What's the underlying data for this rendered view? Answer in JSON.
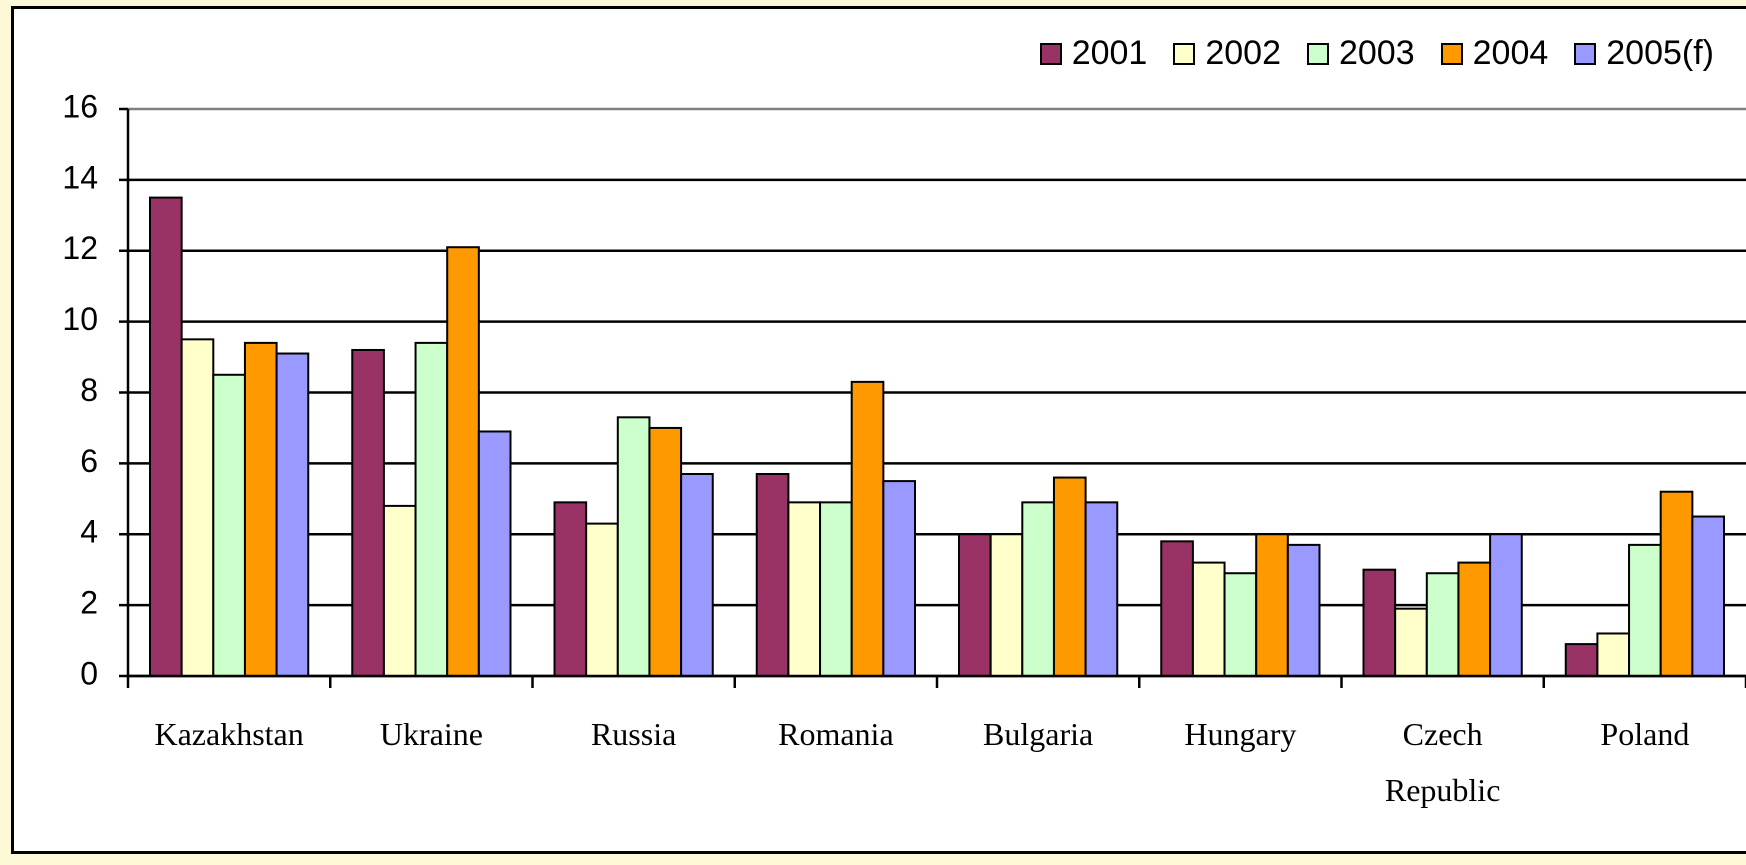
{
  "chart_data": {
    "type": "bar",
    "categories": [
      "Kazakhstan",
      "Ukraine",
      "Russia",
      "Romania",
      "Bulgaria",
      "Hungary",
      "Czech Republic",
      "Poland"
    ],
    "series": [
      {
        "name": "2001",
        "color": "#993366",
        "values": [
          13.5,
          9.2,
          4.9,
          5.7,
          4.0,
          3.8,
          3.0,
          0.9
        ]
      },
      {
        "name": "2002",
        "color": "#ffffcc",
        "values": [
          9.5,
          4.8,
          4.3,
          4.9,
          4.0,
          3.2,
          1.9,
          1.2
        ]
      },
      {
        "name": "2003",
        "color": "#ccffcc",
        "values": [
          8.5,
          9.4,
          7.3,
          4.9,
          4.9,
          2.9,
          2.9,
          3.7
        ]
      },
      {
        "name": "2004",
        "color": "#ff9900",
        "values": [
          9.4,
          12.1,
          7.0,
          8.3,
          5.6,
          4.0,
          3.2,
          5.2
        ]
      },
      {
        "name": "2005(f)",
        "color": "#9999ff",
        "values": [
          9.1,
          6.9,
          5.7,
          5.5,
          4.9,
          3.7,
          4.0,
          4.5
        ]
      }
    ],
    "ylim": [
      0,
      16
    ],
    "yticks": [
      0,
      2,
      4,
      6,
      8,
      10,
      12,
      14,
      16
    ],
    "grid": true,
    "legend": "top-right"
  }
}
